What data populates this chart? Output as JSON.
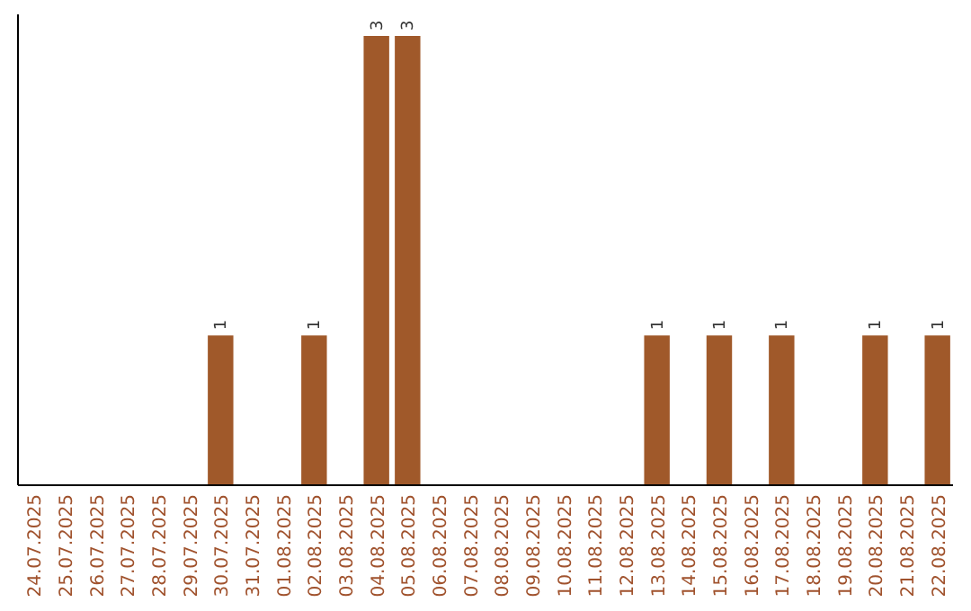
{
  "chart_data": {
    "type": "bar",
    "categories": [
      "24.07.2025",
      "25.07.2025",
      "26.07.2025",
      "27.07.2025",
      "28.07.2025",
      "29.07.2025",
      "30.07.2025",
      "31.07.2025",
      "01.08.2025",
      "02.08.2025",
      "03.08.2025",
      "04.08.2025",
      "05.08.2025",
      "06.08.2025",
      "07.08.2025",
      "08.08.2025",
      "09.08.2025",
      "10.08.2025",
      "11.08.2025",
      "12.08.2025",
      "13.08.2025",
      "14.08.2025",
      "15.08.2025",
      "16.08.2025",
      "17.08.2025",
      "18.08.2025",
      "19.08.2025",
      "20.08.2025",
      "21.08.2025",
      "22.08.2025"
    ],
    "values": [
      0,
      0,
      0,
      0,
      0,
      0,
      1,
      0,
      0,
      1,
      0,
      3,
      3,
      0,
      0,
      0,
      0,
      0,
      0,
      0,
      1,
      0,
      1,
      0,
      1,
      0,
      0,
      1,
      0,
      1
    ],
    "value_labels": [
      null,
      null,
      null,
      null,
      null,
      null,
      "1",
      null,
      null,
      "1",
      null,
      "3",
      "3",
      null,
      null,
      null,
      null,
      null,
      null,
      null,
      "1",
      null,
      "1",
      null,
      "1",
      null,
      null,
      "1",
      null,
      "1"
    ],
    "color": "#a0592a",
    "ylim": [
      0,
      3
    ],
    "tick_labels": "x"
  }
}
